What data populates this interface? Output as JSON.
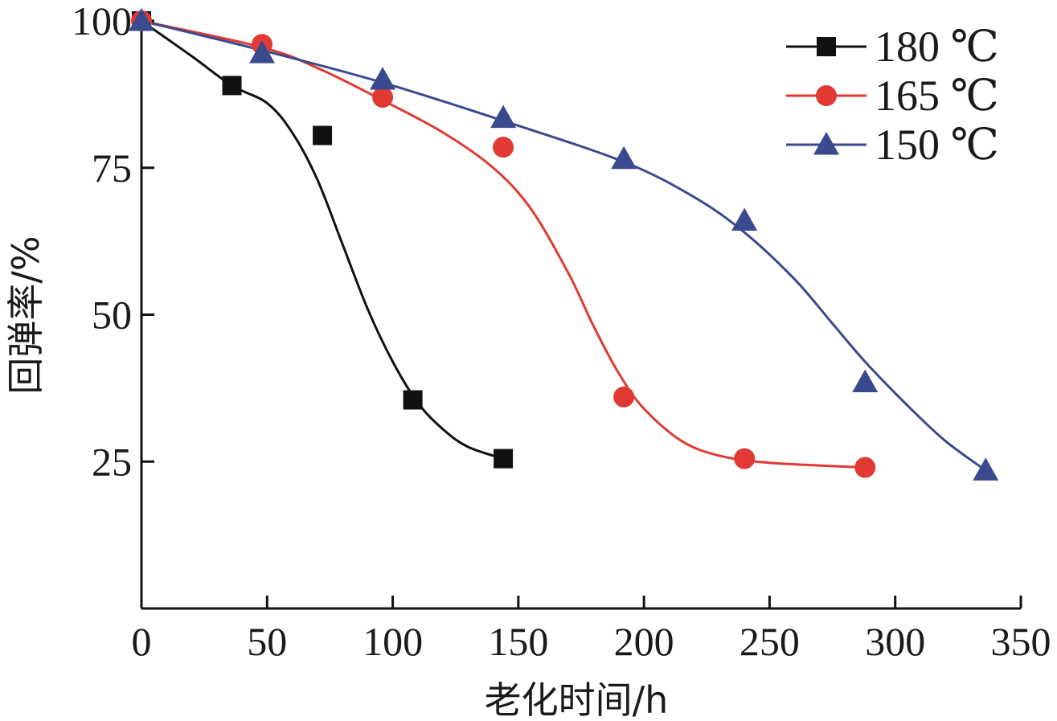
{
  "chart_data": {
    "type": "line",
    "xlabel": "老化时间/h",
    "ylabel": "回弹率/%",
    "xlim": [
      0,
      350
    ],
    "ylim": [
      0,
      100
    ],
    "x_ticks": [
      0,
      50,
      100,
      150,
      200,
      250,
      300,
      350
    ],
    "y_ticks": [
      25,
      50,
      75,
      100
    ],
    "legend_position": "top-right",
    "grid": false,
    "series": [
      {
        "name": "180 ℃",
        "color": "#111111",
        "marker": "square",
        "x": [
          0,
          36,
          72,
          108,
          144
        ],
        "y": [
          100,
          89,
          80.5,
          35.5,
          25.5
        ],
        "fit": [
          [
            0,
            100
          ],
          [
            20,
            94
          ],
          [
            36,
            89
          ],
          [
            50,
            86
          ],
          [
            60,
            81
          ],
          [
            70,
            73
          ],
          [
            80,
            62
          ],
          [
            90,
            51
          ],
          [
            100,
            42
          ],
          [
            110,
            35
          ],
          [
            120,
            30.5
          ],
          [
            130,
            27.5
          ],
          [
            144,
            25.5
          ]
        ]
      },
      {
        "name": "165 ℃",
        "color": "#e03a33",
        "marker": "circle",
        "x": [
          0,
          48,
          96,
          144,
          192,
          240,
          288
        ],
        "y": [
          100,
          96,
          87,
          78.5,
          36,
          25.5,
          24
        ],
        "fit": [
          [
            0,
            100
          ],
          [
            48,
            95.5
          ],
          [
            70,
            92
          ],
          [
            96,
            86.5
          ],
          [
            120,
            81
          ],
          [
            140,
            75
          ],
          [
            155,
            68
          ],
          [
            170,
            57
          ],
          [
            180,
            48
          ],
          [
            190,
            40
          ],
          [
            200,
            34
          ],
          [
            215,
            28.5
          ],
          [
            230,
            26
          ],
          [
            250,
            24.8
          ],
          [
            288,
            24
          ]
        ]
      },
      {
        "name": "150 ℃",
        "color": "#3a4a8e",
        "marker": "triangle",
        "x": [
          0,
          48,
          96,
          144,
          192,
          240,
          288,
          336
        ],
        "y": [
          100,
          94.5,
          90,
          83.5,
          76.5,
          66,
          38.5,
          23.5
        ],
        "fit": [
          [
            0,
            100
          ],
          [
            48,
            95
          ],
          [
            96,
            89.5
          ],
          [
            144,
            83
          ],
          [
            192,
            76
          ],
          [
            220,
            70
          ],
          [
            240,
            64
          ],
          [
            260,
            56
          ],
          [
            275,
            48.5
          ],
          [
            288,
            42
          ],
          [
            305,
            34.5
          ],
          [
            320,
            28.5
          ],
          [
            336,
            23.5
          ]
        ]
      }
    ]
  }
}
